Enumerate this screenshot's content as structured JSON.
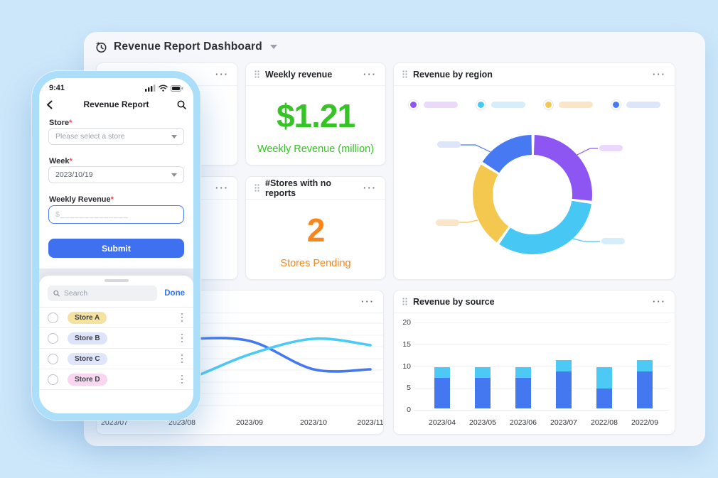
{
  "page": {
    "title": "Revenue Report Dashboard"
  },
  "phone": {
    "status_time": "9:41",
    "header_title": "Revenue Report",
    "form": {
      "store_label": "Store",
      "required_mark": "*",
      "store_placeholder": "Please select a store",
      "week_label": "Week",
      "week_value": "2023/10/19",
      "revenue_label": "Weekly Revenue",
      "revenue_placeholder": "$______________",
      "submit_label": "Submit"
    },
    "sheet": {
      "search_placeholder": "Search",
      "done_label": "Done",
      "stores": [
        {
          "name": "Store A",
          "badge_color": "#f6e2a0"
        },
        {
          "name": "Store B",
          "badge_color": "#dde3f9"
        },
        {
          "name": "Store C",
          "badge_color": "#dfe6fb"
        },
        {
          "name": "Store D",
          "badge_color": "#f8d6f0"
        }
      ]
    }
  },
  "cards": {
    "weekly_revenue": {
      "title": "Weekly revenue",
      "value": "$1.21",
      "caption": "Weekly Revenue (million)",
      "accent": "#35c325"
    },
    "stores_pending": {
      "title": "#Stores with no reports",
      "value": "2",
      "caption": "Stores Pending",
      "accent": "#f8861d"
    },
    "revenue_by_region": {
      "title": "Revenue by region"
    },
    "revenue_by_source": {
      "title": "Revenue by source"
    }
  },
  "chart_data": [
    {
      "id": "region-donut",
      "type": "pie",
      "title": "Revenue by region",
      "legend_position": "top",
      "note": "legend and slice labels shown as blurred placeholder pills, no text visible",
      "segments": [
        {
          "name": "region-purple",
          "color": "#8d55f2",
          "pill_color": "#ead9fb",
          "value": 27
        },
        {
          "name": "region-cyan",
          "color": "#47c7f4",
          "pill_color": "#d4eefc",
          "value": 33
        },
        {
          "name": "region-yellow",
          "color": "#f4c84e",
          "pill_color": "#fce5c6",
          "value": 24
        },
        {
          "name": "region-blue",
          "color": "#4779f2",
          "pill_color": "#dce5f9",
          "value": 16
        }
      ]
    },
    {
      "id": "weekly-trend",
      "type": "line",
      "x": [
        "2023/07",
        "2023/08",
        "2023/09",
        "2023/10",
        "2023/11"
      ],
      "series": [
        {
          "name": "trend-blue",
          "color": "#4478f1",
          "values": [
            8,
            8,
            7.75,
            4.5,
            4.5
          ]
        },
        {
          "name": "trend-cyan",
          "color": "#4cc9f5",
          "values": [
            1.9,
            3.2,
            6.2,
            8,
            7.3
          ]
        }
      ],
      "grid": true
    },
    {
      "id": "source-bars",
      "type": "bar",
      "stacked": true,
      "title": "Revenue by source",
      "categories": [
        "2023/04",
        "2023/05",
        "2023/06",
        "2023/07",
        "2022/08",
        "2022/09"
      ],
      "series": [
        {
          "name": "source-blue",
          "color": "#4478f1",
          "values": [
            7,
            7,
            7,
            8.5,
            4.5,
            8.5
          ]
        },
        {
          "name": "source-cyan",
          "color": "#4cc9f5",
          "values": [
            2.5,
            2.5,
            2.5,
            2.5,
            5,
            2.5
          ]
        }
      ],
      "ylim": [
        0,
        20
      ],
      "yticks": [
        0,
        5,
        10,
        15,
        20
      ],
      "grid": true
    }
  ]
}
